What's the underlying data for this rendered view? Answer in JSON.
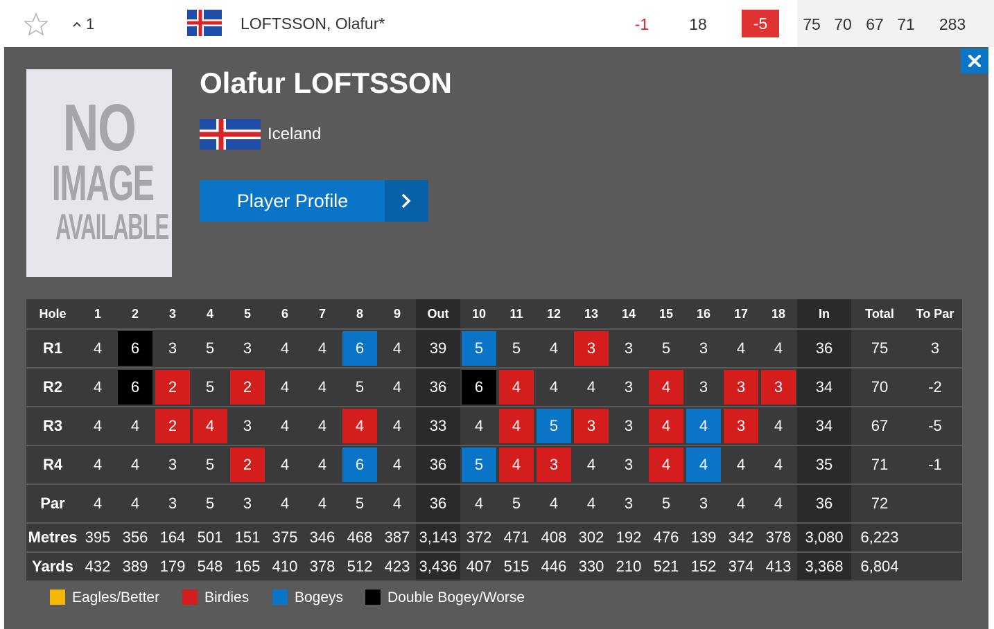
{
  "leaderboard_row": {
    "position_move": "1",
    "player_name": "LOFTSSON, Olafur*",
    "today": "-1",
    "thru": "18",
    "to_par": "-5",
    "rounds": [
      "75",
      "70",
      "67",
      "71"
    ],
    "total": "283"
  },
  "player": {
    "full_name": "Olafur LOFTSSON",
    "country": "Iceland",
    "profile_button": "Player Profile",
    "photo_placeholder": [
      "NO",
      "IMAGE",
      "AVAILABLE"
    ]
  },
  "scorecard": {
    "headers": [
      "Hole",
      "1",
      "2",
      "3",
      "4",
      "5",
      "6",
      "7",
      "8",
      "9",
      "Out",
      "10",
      "11",
      "12",
      "13",
      "14",
      "15",
      "16",
      "17",
      "18",
      "In",
      "Total",
      "To Par"
    ],
    "rounds": [
      {
        "label": "R1",
        "holes": [
          "4",
          "6",
          "3",
          "5",
          "3",
          "4",
          "4",
          "6",
          "4",
          "5",
          "5",
          "4",
          "3",
          "3",
          "5",
          "3",
          "4",
          "4"
        ],
        "status": [
          "",
          "dbl",
          "",
          "",
          "",
          "",
          "",
          "bogey",
          "",
          "bogey",
          "",
          "",
          "birdie",
          "",
          "",
          "",
          "",
          ""
        ],
        "out": "39",
        "in": "36",
        "total": "75",
        "to_par": "3"
      },
      {
        "label": "R2",
        "holes": [
          "4",
          "6",
          "2",
          "5",
          "2",
          "4",
          "4",
          "5",
          "4",
          "6",
          "4",
          "4",
          "4",
          "3",
          "4",
          "3",
          "3",
          "3"
        ],
        "status": [
          "",
          "dbl",
          "birdie",
          "",
          "birdie",
          "",
          "",
          "",
          "",
          "dbl",
          "birdie",
          "",
          "",
          "",
          "birdie",
          "",
          "birdie",
          "birdie"
        ],
        "out": "36",
        "in": "34",
        "total": "70",
        "to_par": "-2"
      },
      {
        "label": "R3",
        "holes": [
          "4",
          "4",
          "2",
          "4",
          "3",
          "4",
          "4",
          "4",
          "4",
          "4",
          "4",
          "5",
          "3",
          "3",
          "4",
          "4",
          "3",
          "4"
        ],
        "status": [
          "",
          "",
          "birdie",
          "birdie",
          "",
          "",
          "",
          "birdie",
          "",
          "",
          "birdie",
          "bogey",
          "birdie",
          "",
          "birdie",
          "bogey",
          "birdie",
          ""
        ],
        "out": "33",
        "in": "34",
        "total": "67",
        "to_par": "-5"
      },
      {
        "label": "R4",
        "holes": [
          "4",
          "4",
          "3",
          "5",
          "2",
          "4",
          "4",
          "6",
          "4",
          "5",
          "4",
          "3",
          "4",
          "3",
          "4",
          "4",
          "4",
          "4"
        ],
        "status": [
          "",
          "",
          "",
          "",
          "birdie",
          "",
          "",
          "bogey",
          "",
          "bogey",
          "birdie",
          "birdie",
          "",
          "",
          "birdie",
          "bogey",
          "",
          ""
        ],
        "out": "36",
        "in": "35",
        "total": "71",
        "to_par": "-1"
      }
    ],
    "par": {
      "label": "Par",
      "holes": [
        "4",
        "4",
        "3",
        "5",
        "3",
        "4",
        "4",
        "5",
        "4",
        "4",
        "5",
        "4",
        "4",
        "3",
        "5",
        "3",
        "4",
        "4"
      ],
      "out": "36",
      "in": "36",
      "total": "72"
    },
    "metres": {
      "label": "Metres",
      "holes": [
        "395",
        "356",
        "164",
        "501",
        "151",
        "375",
        "346",
        "468",
        "387",
        "372",
        "471",
        "408",
        "302",
        "192",
        "476",
        "139",
        "342",
        "378"
      ],
      "out": "3,143",
      "in": "3,080",
      "total": "6,223"
    },
    "yards": {
      "label": "Yards",
      "holes": [
        "432",
        "389",
        "179",
        "548",
        "165",
        "410",
        "378",
        "512",
        "423",
        "407",
        "515",
        "446",
        "330",
        "210",
        "521",
        "152",
        "374",
        "413"
      ],
      "out": "3,436",
      "in": "3,368",
      "total": "6,804"
    }
  },
  "legend": [
    {
      "label": "Eagles/Better",
      "color": "#f5b800"
    },
    {
      "label": "Birdies",
      "color": "#d41e1e"
    },
    {
      "label": "Bogeys",
      "color": "#0a74c6"
    },
    {
      "label": "Double Bogey/Worse",
      "color": "#000000"
    }
  ]
}
